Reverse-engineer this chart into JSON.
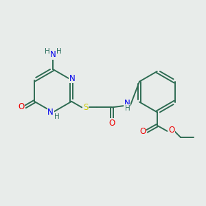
{
  "background_color": "#e8ecea",
  "bond_color": "#2d6b52",
  "atom_colors": {
    "N": "#0000ee",
    "O": "#ee0000",
    "S": "#cccc00",
    "H": "#2d7060",
    "C": "#2d6b52"
  },
  "figsize": [
    3.0,
    3.0
  ],
  "dpi": 100,
  "lw": 1.4,
  "fs": 8.5,
  "fs_small": 7.5
}
